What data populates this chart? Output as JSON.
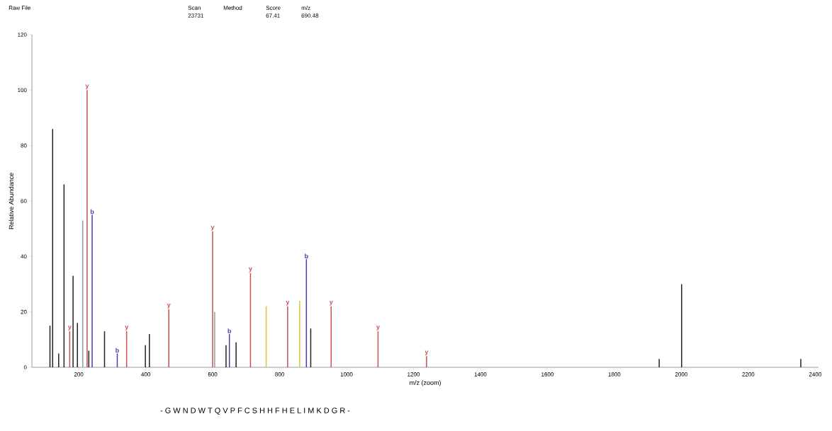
{
  "chart_data": {
    "type": "bar",
    "xlabel": "m/z (zoom)",
    "ylabel": "Relative Abundance",
    "xlim": [
      60,
      2410
    ],
    "ylim": [
      0,
      120
    ],
    "xticks": [
      200,
      400,
      600,
      800,
      1000,
      1200,
      1400,
      1600,
      1800,
      2000,
      2200,
      2400
    ],
    "yticks": [
      0,
      20,
      40,
      60,
      80,
      100,
      120
    ],
    "grid": false,
    "marker": "none",
    "series": [
      {
        "color": "#222222",
        "x": [
          114,
          122,
          140,
          156,
          183,
          196,
          230,
          277,
          399,
          411,
          640,
          670,
          893,
          1934,
          2001,
          2357
        ],
        "values": [
          15,
          86,
          5,
          66,
          33,
          16,
          6,
          13,
          8,
          12,
          8,
          9,
          14,
          3,
          30,
          3
        ]
      },
      {
        "color": "#999999",
        "x": [
          212,
          606
        ],
        "values": [
          53,
          20
        ]
      },
      {
        "color": "#c85050",
        "x": [
          173,
          225,
          343,
          469,
          600,
          713,
          824,
          954,
          1094,
          1239
        ],
        "values": [
          13,
          100,
          13,
          21,
          49,
          34,
          22,
          22,
          13,
          4
        ]
      },
      {
        "color": "#4040b0",
        "x": [
          240,
          315,
          650,
          880
        ],
        "values": [
          55,
          5,
          12,
          39
        ]
      },
      {
        "color": "#e0c040",
        "x": [
          760,
          860
        ],
        "values": [
          22,
          24
        ]
      }
    ],
    "annotations": [
      "Raw File",
      "Scan",
      "23731",
      "Method",
      "Score",
      "67.41",
      "m/z",
      "690.48",
      "- G W N D W T Q V P F C S H H F H E L I M K D G R -",
      {
        "text": "y",
        "x": 173,
        "y": 13
      },
      {
        "text": "y",
        "x": 225,
        "y": 100
      },
      {
        "text": "y",
        "x": 343,
        "y": 13
      },
      {
        "text": "y",
        "x": 469,
        "y": 21
      },
      {
        "text": "y",
        "x": 600,
        "y": 49
      },
      {
        "text": "y",
        "x": 713,
        "y": 34
      },
      {
        "text": "y",
        "x": 824,
        "y": 22
      },
      {
        "text": "y",
        "x": 954,
        "y": 22
      },
      {
        "text": "y",
        "x": 1094,
        "y": 13
      },
      {
        "text": "y",
        "x": 1239,
        "y": 4
      },
      {
        "text": "b",
        "x": 240,
        "y": 55
      },
      {
        "text": "b",
        "x": 315,
        "y": 5
      },
      {
        "text": "b",
        "x": 650,
        "y": 12
      },
      {
        "text": "b",
        "x": 880,
        "y": 39
      }
    ]
  }
}
